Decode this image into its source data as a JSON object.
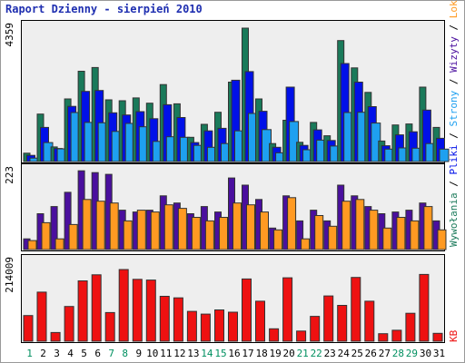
{
  "chart_data": {
    "type": "bar",
    "title": "Raport Dzienny -  sierpień 2010",
    "categories": [
      "1",
      "2",
      "3",
      "4",
      "5",
      "6",
      "7",
      "8",
      "9",
      "10",
      "11",
      "12",
      "13",
      "14",
      "15",
      "16",
      "17",
      "18",
      "19",
      "20",
      "21",
      "22",
      "23",
      "24",
      "25",
      "26",
      "27",
      "28",
      "29",
      "30",
      "31"
    ],
    "weekend_days": [
      "1",
      "7",
      "8",
      "14",
      "15",
      "21",
      "22",
      "28",
      "29"
    ],
    "colors": {
      "weekend": "#009060",
      "weekday": "#000000",
      "title": "#1f2fb0"
    },
    "panels": [
      {
        "ymax_label": "4359",
        "ymax": 4359,
        "series": [
          {
            "name": "Wywołania",
            "color": "#1a7a5a",
            "values": [
              270,
              1530,
              470,
              2020,
              2910,
              3030,
              1990,
              1960,
              2050,
              1880,
              2480,
              1860,
              780,
              1200,
              1590,
              2560,
              4300,
              2020,
              580,
              1330,
              620,
              1260,
              830,
              3900,
              3020,
              2230,
              660,
              1180,
              1210,
              2400,
              1100
            ]
          },
          {
            "name": "Pliki",
            "color": "#0010e8",
            "values": [
              200,
              1100,
              420,
              1780,
              2260,
              2290,
              1570,
              1500,
              1610,
              1380,
              1830,
              1420,
              610,
              990,
              1070,
              2620,
              2900,
              1620,
              460,
              2400,
              520,
              1020,
              680,
              3160,
              2560,
              1770,
              510,
              860,
              960,
              1660,
              750
            ]
          },
          {
            "name": "Strony",
            "color": "#1ea0f0",
            "values": [
              110,
              610,
              410,
              1580,
              1260,
              1250,
              970,
              1230,
              1120,
              650,
              800,
              780,
              520,
              460,
              580,
              990,
              1550,
              1030,
              280,
              1290,
              380,
              690,
              500,
              1580,
              1590,
              1240,
              400,
              440,
              430,
              580,
              400
            ]
          }
        ]
      },
      {
        "ymax_label": "223",
        "ymax": 223,
        "series": [
          {
            "name": "Wizyty",
            "color": "#4a0f9e",
            "values": [
              30,
              100,
              120,
              160,
              220,
              215,
              210,
              110,
              105,
              110,
              150,
              130,
              100,
              120,
              105,
              200,
              180,
              140,
              60,
              150,
              80,
              110,
              80,
              180,
              150,
              120,
              100,
              105,
              110,
              130,
              80
            ]
          },
          {
            "name": "Lokalizacje",
            "color": "#ff9a22",
            "values": [
              25,
              75,
              30,
              70,
              140,
              135,
              130,
              80,
              110,
              105,
              125,
              115,
              90,
              80,
              90,
              130,
              125,
              105,
              55,
              145,
              30,
              95,
              65,
              135,
              140,
              110,
              60,
              90,
              80,
              120,
              55
            ]
          }
        ]
      },
      {
        "ymax_label": "214009",
        "ymax": 214009,
        "series": [
          {
            "name": "KB",
            "color": "#ee1111",
            "values": [
              68000,
              130000,
              23000,
              92000,
              160000,
              176000,
              76000,
              190000,
              164000,
              162000,
              119000,
              115000,
              79000,
              72000,
              83000,
              77000,
              165000,
              106000,
              33000,
              168000,
              27000,
              66000,
              120000,
              95000,
              169000,
              106000,
              20000,
              29000,
              74000,
              177000,
              21000
            ]
          }
        ]
      }
    ],
    "legend_top": [
      {
        "text": "Wywołania",
        "color": "#1a7a5a"
      },
      {
        "text": " / ",
        "color": "#000000"
      },
      {
        "text": "Pliki",
        "color": "#0010e8"
      },
      {
        "text": " / ",
        "color": "#000000"
      },
      {
        "text": "Strony",
        "color": "#1ea0f0"
      },
      {
        "text": " / ",
        "color": "#000000"
      },
      {
        "text": "Wizyty",
        "color": "#4a0f9e"
      },
      {
        "text": " / ",
        "color": "#000000"
      },
      {
        "text": "Lokalizacje",
        "color": "#ff9a22"
      }
    ],
    "legend_bottom": [
      {
        "text": "KB",
        "color": "#ee1111"
      }
    ]
  }
}
